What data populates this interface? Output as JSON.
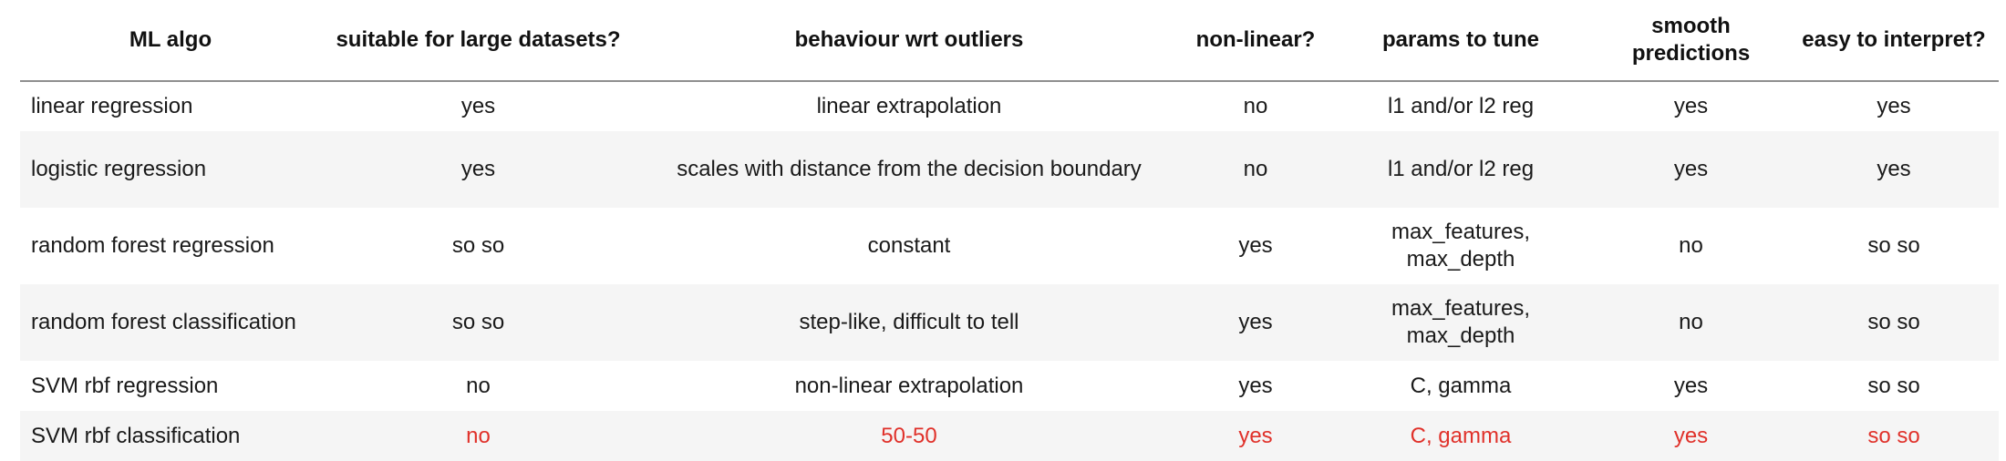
{
  "table": {
    "headers": [
      "ML algo",
      "suitable for large datasets?",
      "behaviour wrt outliers",
      "non-linear?",
      "params to tune",
      "smooth predictions",
      "easy to interpret?"
    ],
    "rows": [
      [
        "linear regression",
        "yes",
        "linear extrapolation",
        "no",
        "l1 and/or l2 reg",
        "yes",
        "yes"
      ],
      [
        "logistic regression",
        "yes",
        "scales with distance from the decision boundary",
        "no",
        "l1 and/or l2 reg",
        "yes",
        "yes"
      ],
      [
        "random forest regression",
        "so so",
        "constant",
        "yes",
        "max_features, max_depth",
        "no",
        "so so"
      ],
      [
        "random forest classification",
        "so so",
        "step-like, difficult to tell",
        "yes",
        "max_features, max_depth",
        "no",
        "so so"
      ],
      [
        "SVM rbf regression",
        "no",
        "non-linear extrapolation",
        "yes",
        "C, gamma",
        "yes",
        "so so"
      ],
      [
        "SVM rbf classification",
        "no",
        "50-50",
        "yes",
        "C, gamma",
        "yes",
        "so so"
      ]
    ]
  },
  "colors": {
    "highlight_text": "#e0312a",
    "stripe_background": "#f5f5f5",
    "header_rule": "#8f8f8f"
  }
}
